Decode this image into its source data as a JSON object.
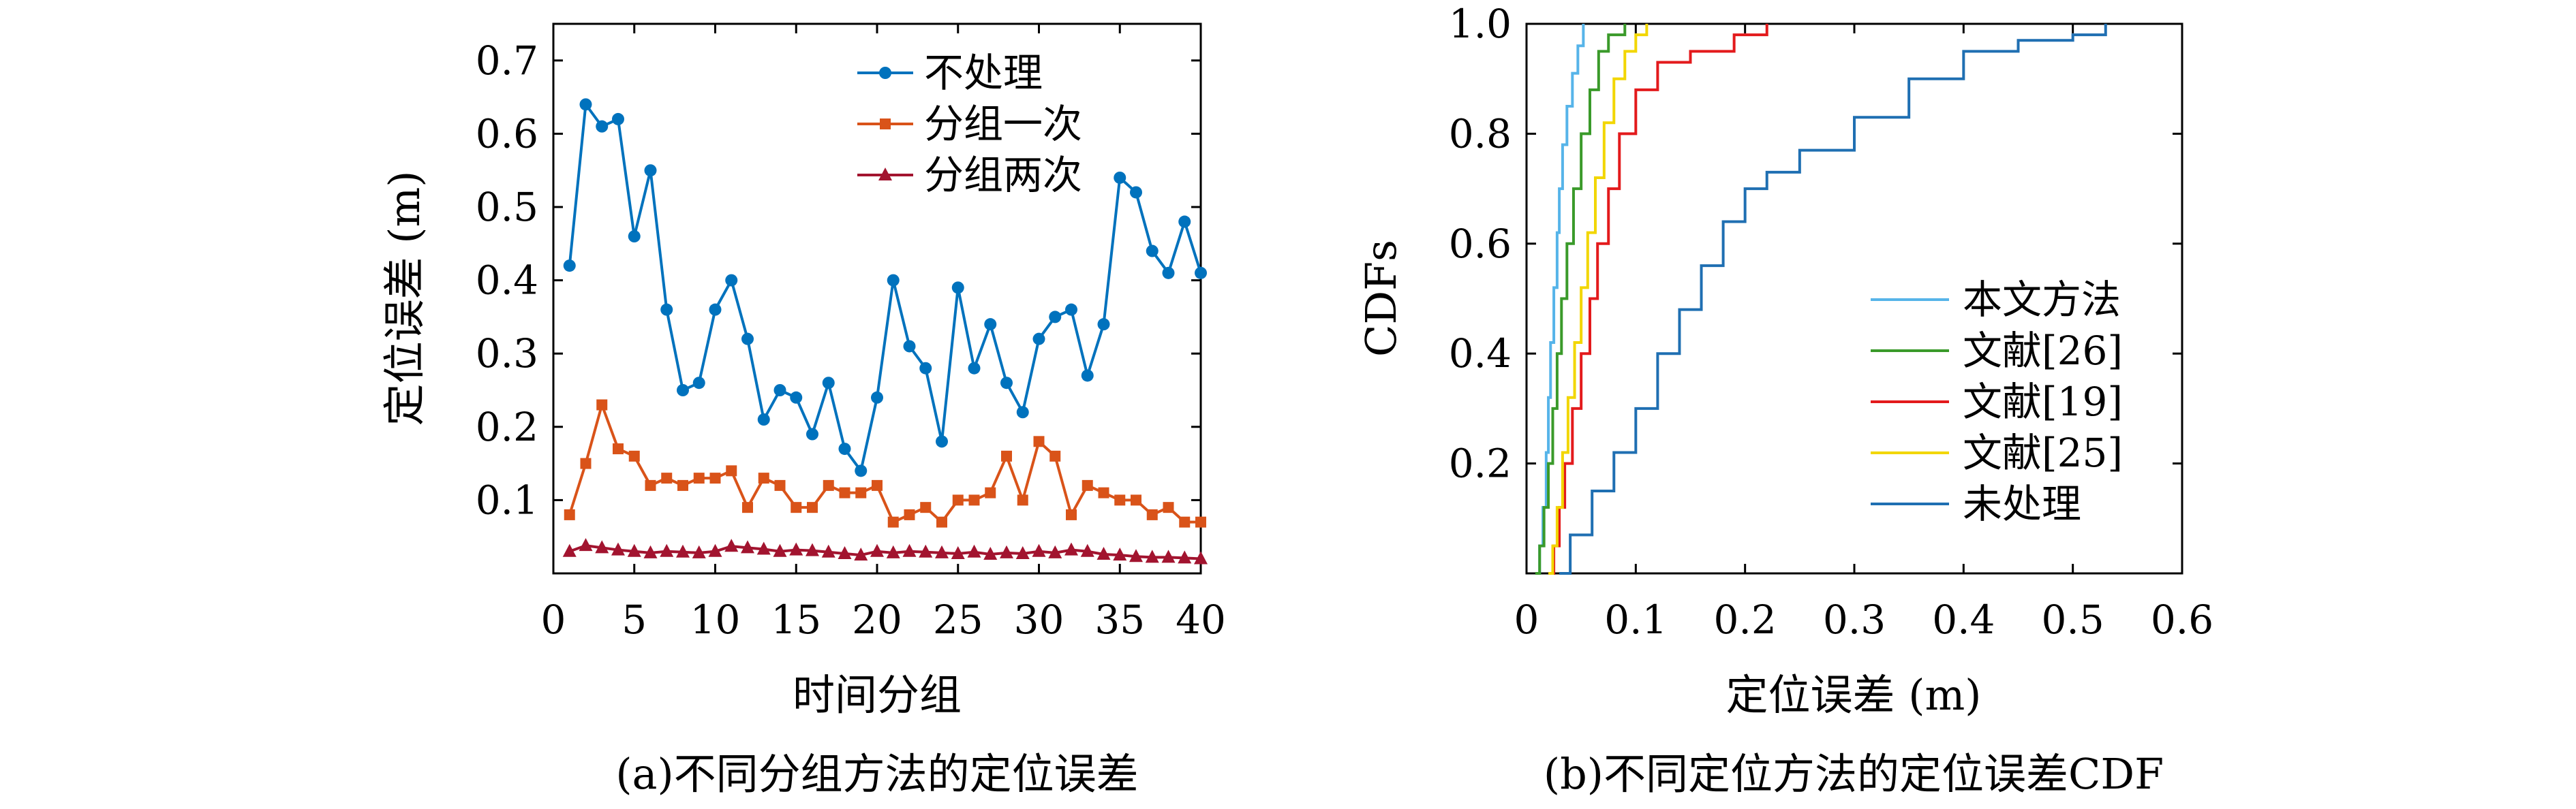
{
  "chart_data": [
    {
      "type": "line",
      "caption": "(a)不同分组方法的定位误差",
      "xlabel": "时间分组",
      "ylabel": "定位误差 (m)",
      "xlim": [
        0,
        40
      ],
      "ylim": [
        0,
        0.75
      ],
      "xticks": [
        "0",
        "5",
        "10",
        "15",
        "20",
        "25",
        "30",
        "35",
        "40"
      ],
      "yticks": [
        "0.1",
        "0.2",
        "0.3",
        "0.4",
        "0.5",
        "0.6",
        "0.7"
      ],
      "legend_position": "top-right",
      "x": [
        1,
        2,
        3,
        4,
        5,
        6,
        7,
        8,
        9,
        10,
        11,
        12,
        13,
        14,
        15,
        16,
        17,
        18,
        19,
        20,
        21,
        22,
        23,
        24,
        25,
        26,
        27,
        28,
        29,
        30,
        31,
        32,
        33,
        34,
        35,
        36,
        37,
        38,
        39,
        40
      ],
      "series": [
        {
          "name": "不处理",
          "color": "#0072bd",
          "marker": "circle",
          "values": [
            0.42,
            0.64,
            0.61,
            0.62,
            0.46,
            0.55,
            0.36,
            0.25,
            0.26,
            0.36,
            0.4,
            0.32,
            0.21,
            0.25,
            0.24,
            0.19,
            0.26,
            0.17,
            0.14,
            0.24,
            0.4,
            0.31,
            0.28,
            0.18,
            0.39,
            0.28,
            0.34,
            0.26,
            0.22,
            0.32,
            0.35,
            0.36,
            0.27,
            0.34,
            0.54,
            0.52,
            0.44,
            0.41,
            0.48,
            0.41
          ]
        },
        {
          "name": "分组一次",
          "color": "#d95319",
          "marker": "square",
          "values": [
            0.08,
            0.15,
            0.23,
            0.17,
            0.16,
            0.12,
            0.13,
            0.12,
            0.13,
            0.13,
            0.14,
            0.09,
            0.13,
            0.12,
            0.09,
            0.09,
            0.12,
            0.11,
            0.11,
            0.12,
            0.07,
            0.08,
            0.09,
            0.07,
            0.1,
            0.1,
            0.11,
            0.16,
            0.1,
            0.18,
            0.16,
            0.08,
            0.12,
            0.11,
            0.1,
            0.1,
            0.08,
            0.09,
            0.07,
            0.07
          ]
        },
        {
          "name": "分组两次",
          "color": "#a2142f",
          "marker": "triangle",
          "values": [
            0.03,
            0.038,
            0.035,
            0.032,
            0.03,
            0.028,
            0.03,
            0.029,
            0.028,
            0.03,
            0.037,
            0.035,
            0.033,
            0.03,
            0.032,
            0.031,
            0.029,
            0.027,
            0.025,
            0.03,
            0.028,
            0.03,
            0.029,
            0.028,
            0.027,
            0.029,
            0.026,
            0.028,
            0.027,
            0.03,
            0.028,
            0.032,
            0.03,
            0.026,
            0.025,
            0.023,
            0.022,
            0.022,
            0.021,
            0.02
          ]
        }
      ]
    },
    {
      "type": "line",
      "subtype": "cdf",
      "caption": "(b)不同定位方法的定位误差CDF",
      "xlabel": "定位误差 (m)",
      "ylabel": "CDFs",
      "xlim": [
        0,
        0.6
      ],
      "ylim": [
        0,
        1.0
      ],
      "xticks": [
        "0",
        "0.1",
        "0.2",
        "0.3",
        "0.4",
        "0.5",
        "0.6"
      ],
      "yticks": [
        "0.2",
        "0.4",
        "0.6",
        "0.8",
        "1.0"
      ],
      "legend_position": "bottom-right",
      "series": [
        {
          "name": "本文方法",
          "color": "#56b4e9",
          "points": [
            [
              0.01,
              0
            ],
            [
              0.012,
              0.05
            ],
            [
              0.015,
              0.12
            ],
            [
              0.018,
              0.22
            ],
            [
              0.02,
              0.32
            ],
            [
              0.022,
              0.42
            ],
            [
              0.025,
              0.52
            ],
            [
              0.028,
              0.62
            ],
            [
              0.03,
              0.7
            ],
            [
              0.033,
              0.78
            ],
            [
              0.037,
              0.85
            ],
            [
              0.042,
              0.91
            ],
            [
              0.047,
              0.96
            ],
            [
              0.052,
              1.0
            ]
          ]
        },
        {
          "name": "文献[26]",
          "color": "#3a9a2a",
          "points": [
            [
              0.008,
              0
            ],
            [
              0.012,
              0.05
            ],
            [
              0.016,
              0.12
            ],
            [
              0.02,
              0.2
            ],
            [
              0.024,
              0.3
            ],
            [
              0.028,
              0.4
            ],
            [
              0.032,
              0.5
            ],
            [
              0.037,
              0.6
            ],
            [
              0.043,
              0.7
            ],
            [
              0.05,
              0.8
            ],
            [
              0.058,
              0.88
            ],
            [
              0.066,
              0.95
            ],
            [
              0.075,
              0.98
            ],
            [
              0.09,
              1.0
            ]
          ]
        },
        {
          "name": "文献[19]",
          "color": "#e31a1c",
          "points": [
            [
              0.02,
              0
            ],
            [
              0.025,
              0.05
            ],
            [
              0.03,
              0.12
            ],
            [
              0.035,
              0.2
            ],
            [
              0.042,
              0.3
            ],
            [
              0.05,
              0.4
            ],
            [
              0.058,
              0.5
            ],
            [
              0.065,
              0.6
            ],
            [
              0.075,
              0.7
            ],
            [
              0.085,
              0.8
            ],
            [
              0.1,
              0.88
            ],
            [
              0.12,
              0.93
            ],
            [
              0.15,
              0.95
            ],
            [
              0.19,
              0.98
            ],
            [
              0.22,
              1.0
            ]
          ]
        },
        {
          "name": "文献[25]",
          "color": "#f2d600",
          "points": [
            [
              0.02,
              0
            ],
            [
              0.024,
              0.05
            ],
            [
              0.028,
              0.12
            ],
            [
              0.033,
              0.22
            ],
            [
              0.038,
              0.32
            ],
            [
              0.044,
              0.42
            ],
            [
              0.05,
              0.52
            ],
            [
              0.056,
              0.62
            ],
            [
              0.063,
              0.72
            ],
            [
              0.071,
              0.82
            ],
            [
              0.08,
              0.9
            ],
            [
              0.09,
              0.95
            ],
            [
              0.1,
              0.98
            ],
            [
              0.11,
              1.0
            ]
          ]
        },
        {
          "name": "未处理",
          "color": "#1f6fb2",
          "points": [
            [
              0.03,
              0
            ],
            [
              0.04,
              0.07
            ],
            [
              0.06,
              0.15
            ],
            [
              0.08,
              0.22
            ],
            [
              0.1,
              0.3
            ],
            [
              0.12,
              0.4
            ],
            [
              0.14,
              0.48
            ],
            [
              0.16,
              0.56
            ],
            [
              0.18,
              0.64
            ],
            [
              0.2,
              0.7
            ],
            [
              0.22,
              0.73
            ],
            [
              0.25,
              0.77
            ],
            [
              0.3,
              0.83
            ],
            [
              0.35,
              0.9
            ],
            [
              0.4,
              0.95
            ],
            [
              0.45,
              0.97
            ],
            [
              0.5,
              0.98
            ],
            [
              0.53,
              1.0
            ]
          ]
        }
      ]
    }
  ]
}
